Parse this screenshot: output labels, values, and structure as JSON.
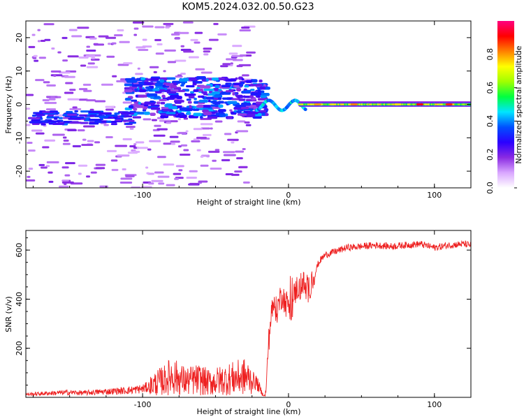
{
  "title": "KOM5.2024.032.00.50.G23",
  "chart_data": [
    {
      "type": "heatmap",
      "xlabel": "Height of straight line (km)",
      "ylabel": "Frequency (Hz)",
      "xlim": [
        -180,
        125
      ],
      "ylim": [
        -25,
        25
      ],
      "xticks": [
        -100,
        0,
        100
      ],
      "yticks": [
        -20,
        -10,
        0,
        10,
        20
      ],
      "colorbar": {
        "label": "Normalized spectral amplitude",
        "range": [
          0,
          1
        ],
        "ticks": [
          "0.0",
          "0.2",
          "0.4",
          "0.6",
          "0.8"
        ],
        "colormap": [
          "#ffffff",
          "#d9a6ff",
          "#8a2be2",
          "#2a00ff",
          "#0050ff",
          "#00e5ff",
          "#00ff40",
          "#a0ff00",
          "#ffff00",
          "#ff8000",
          "#ff0000",
          "#ff0080"
        ]
      },
      "description_regions": [
        {
          "x_range": [
            -180,
            -30
          ],
          "freq_range": [
            -25,
            25
          ],
          "amplitude": 0.15
        },
        {
          "x_range": [
            -110,
            -20
          ],
          "freq_range": [
            -5,
            10
          ],
          "amplitude": 0.3
        },
        {
          "x_range": [
            -20,
            10
          ],
          "freq_range": [
            -3,
            2
          ],
          "amplitude": 0.45
        },
        {
          "x_range": [
            10,
            125
          ],
          "freq_range": [
            -1,
            1
          ],
          "amplitude": 0.65
        }
      ]
    },
    {
      "type": "line",
      "xlabel": "Height of straight line (km)",
      "ylabel": "SNR (v/v)",
      "xlim": [
        -180,
        125
      ],
      "ylim": [
        0,
        680
      ],
      "xticks": [
        -100,
        0,
        100
      ],
      "yticks": [
        200,
        400,
        600
      ],
      "color": "#ee2020",
      "series": [
        {
          "x": [
            -180,
            -170,
            -160,
            -150,
            -140,
            -130,
            -120,
            -110,
            -100,
            -95,
            -90,
            -85,
            -80,
            -75,
            -70,
            -65,
            -60,
            -55,
            -50,
            -45,
            -40,
            -35,
            -30,
            -25,
            -22,
            -20,
            -18,
            -16,
            -15,
            -14,
            -12,
            -10,
            -8,
            -6,
            -4,
            -2,
            0,
            2,
            4,
            6,
            8,
            10,
            12,
            14,
            16,
            18,
            20,
            22,
            25,
            30,
            35,
            40,
            50,
            60,
            70,
            80,
            90,
            100,
            110,
            120,
            125
          ],
          "y": [
            12,
            15,
            18,
            20,
            18,
            22,
            25,
            28,
            35,
            45,
            60,
            70,
            90,
            75,
            65,
            70,
            72,
            60,
            65,
            70,
            75,
            80,
            85,
            70,
            60,
            40,
            15,
            5,
            60,
            200,
            330,
            380,
            350,
            400,
            420,
            380,
            390,
            350,
            420,
            450,
            440,
            470,
            430,
            440,
            480,
            500,
            540,
            560,
            580,
            590,
            600,
            610,
            615,
            620,
            615,
            620,
            625,
            610,
            620,
            625,
            620
          ]
        }
      ]
    }
  ]
}
